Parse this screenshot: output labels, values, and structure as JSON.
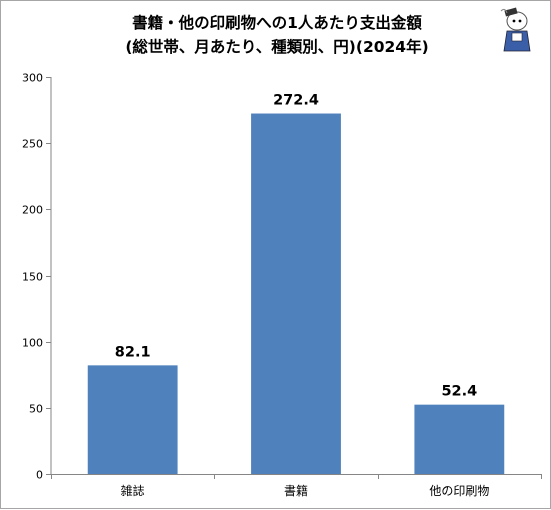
{
  "chart_data": {
    "type": "bar",
    "title": "書籍・他の印刷物への1人あたり支出金額",
    "subtitle": "(総世帯、月あたり、種類別、円)(2024年)",
    "categories": [
      "雑誌",
      "書籍",
      "他の印刷物"
    ],
    "values": [
      82.1,
      272.4,
      52.4
    ],
    "value_labels": [
      "82.1",
      "272.4",
      "52.4"
    ],
    "ylim": [
      0,
      300
    ],
    "yticks": [
      0,
      50,
      100,
      150,
      200,
      250,
      300
    ],
    "xlabel": "",
    "ylabel": "",
    "grid": false,
    "legend": "none",
    "bar_color": "#4f81bd",
    "axis_color": "#868686"
  }
}
